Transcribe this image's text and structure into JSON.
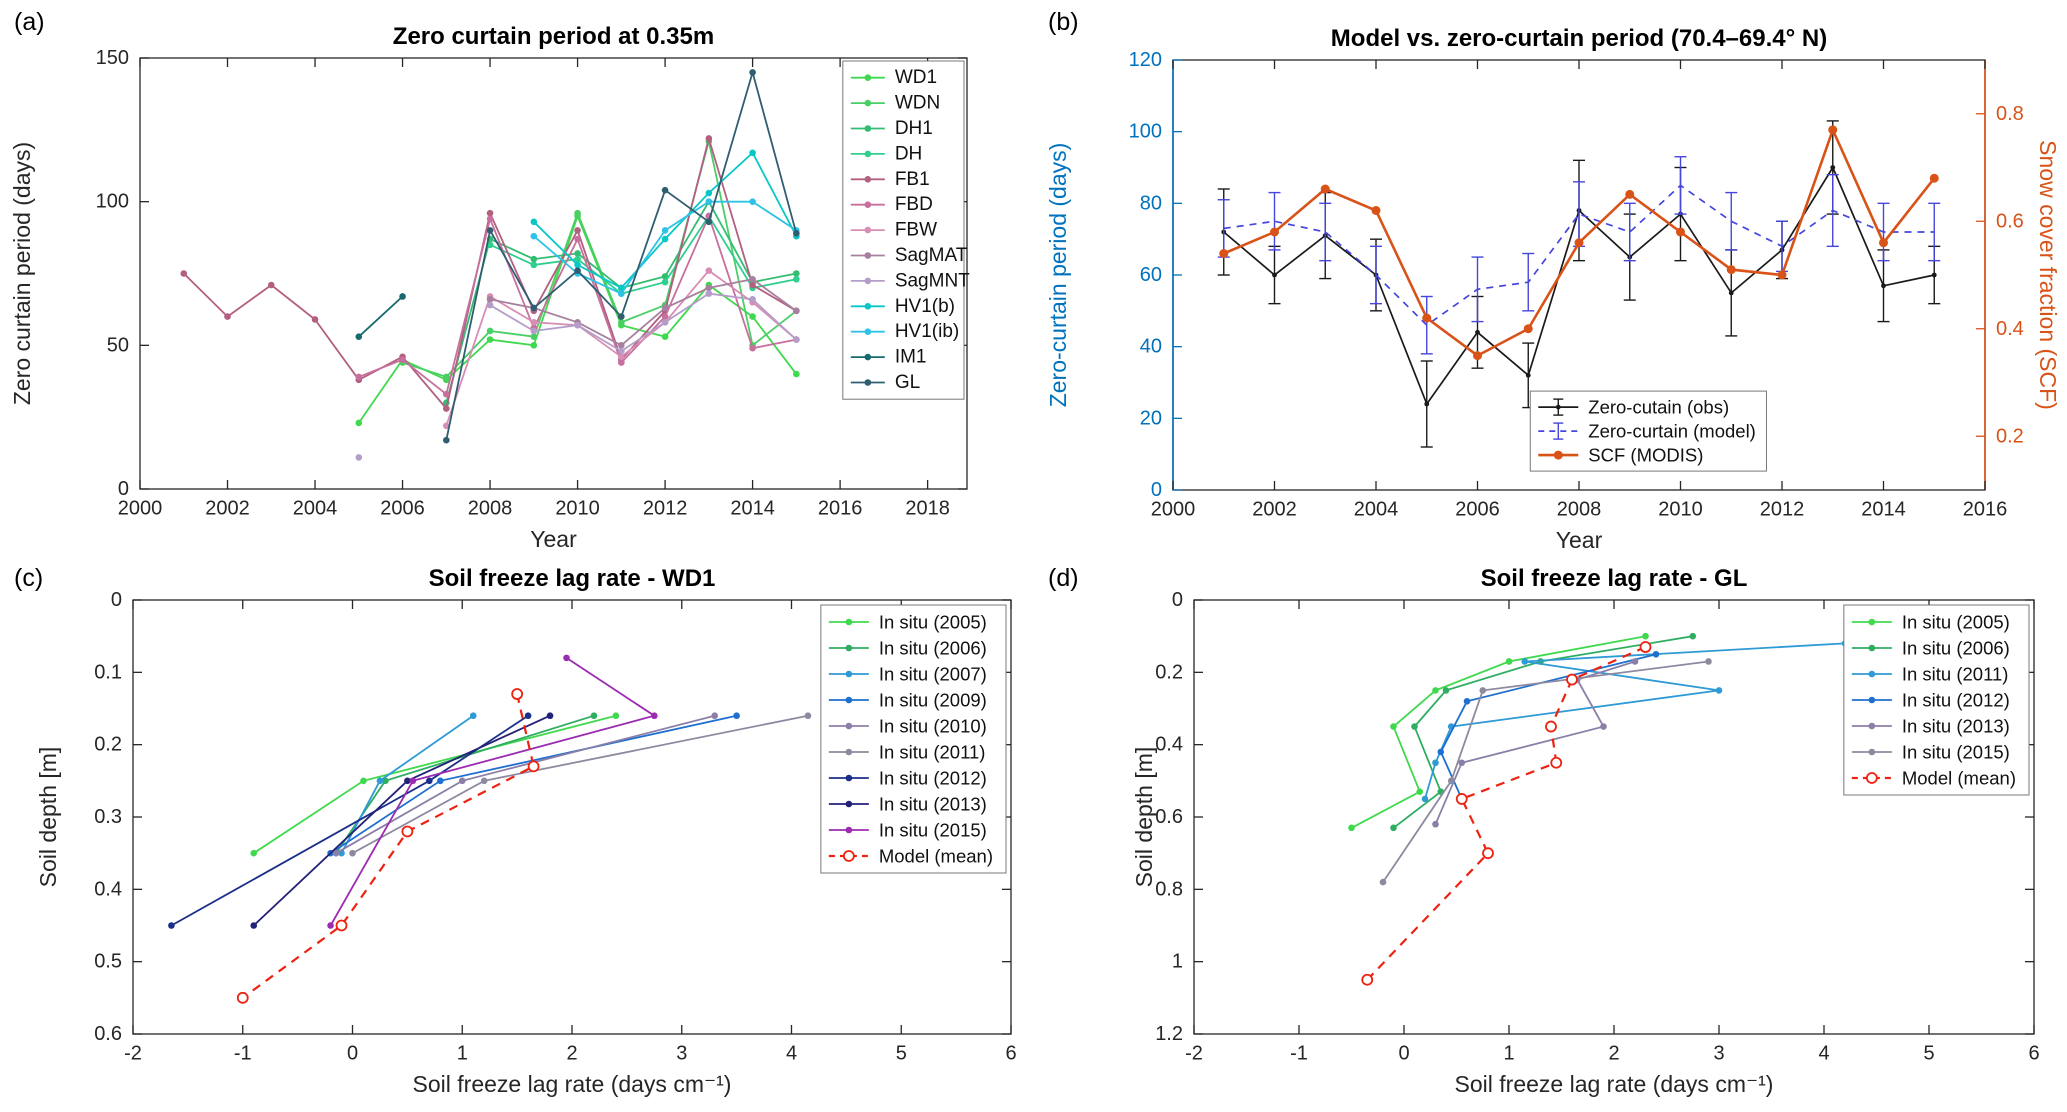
{
  "figure": {
    "background": "#ffffff"
  },
  "panels": {
    "a": {
      "tag": "(a)"
    },
    "b": {
      "tag": "(b)"
    },
    "c": {
      "tag": "(c)"
    },
    "d": {
      "tag": "(d)"
    }
  },
  "chart_data": [
    {
      "id": "a",
      "type": "line",
      "title": "Zero curtain period at 0.35m",
      "xlabel": "Year",
      "ylabel": "Zero curtain period (days)",
      "xlim": [
        2000,
        2018.9
      ],
      "ylim": [
        0,
        150
      ],
      "xticks": [
        2000,
        2002,
        2004,
        2006,
        2008,
        2010,
        2012,
        2014,
        2016,
        2018
      ],
      "yticks": [
        0,
        50,
        100,
        150
      ],
      "grid": false,
      "legend_position": "top-right-inside",
      "series": [
        {
          "name": "WD1",
          "color": "#3fd94d",
          "marker": "o",
          "x": [
            2005,
            2006,
            2007,
            2008,
            2009,
            2010,
            2011,
            2012,
            2013,
            2014,
            2015
          ],
          "y": [
            23,
            45,
            38,
            52,
            50,
            95,
            57,
            53,
            71,
            60,
            40
          ]
        },
        {
          "name": "WDN",
          "color": "#49cf63",
          "marker": "o",
          "x": [
            2006,
            2007,
            2008,
            2009,
            2010,
            2011,
            2012,
            2013,
            2014,
            2015
          ],
          "y": [
            44,
            39,
            55,
            53,
            96,
            58,
            64,
            121,
            50,
            62
          ]
        },
        {
          "name": "DH1",
          "color": "#34bd72",
          "marker": "o",
          "x": [
            2007,
            2008,
            2009,
            2010,
            2011,
            2012,
            2013,
            2014,
            2015
          ],
          "y": [
            30,
            87,
            80,
            82,
            70,
            74,
            100,
            72,
            75
          ]
        },
        {
          "name": "DH",
          "color": "#2fcf8e",
          "marker": "o",
          "x": [
            2008,
            2009,
            2010,
            2011,
            2012,
            2013,
            2014,
            2015
          ],
          "y": [
            85,
            78,
            80,
            68,
            72,
            95,
            70,
            73
          ]
        },
        {
          "name": "FB1",
          "color": "#b25f80",
          "marker": "o",
          "x": [
            2001,
            2002,
            2003,
            2004,
            2005,
            2006,
            2007,
            2008,
            2009,
            2010,
            2011,
            2012,
            2013,
            2014,
            2015
          ],
          "y": [
            75,
            60,
            71,
            59,
            38,
            46,
            28,
            96,
            62,
            90,
            45,
            62,
            122,
            71,
            62
          ]
        },
        {
          "name": "FBD",
          "color": "#c76f9d",
          "marker": "o",
          "x": [
            2005,
            2006,
            2007,
            2008,
            2009,
            2010,
            2011,
            2012,
            2013,
            2014,
            2015
          ],
          "y": [
            39,
            45,
            33,
            94,
            56,
            87,
            44,
            60,
            95,
            49,
            52
          ]
        },
        {
          "name": "FBW",
          "color": "#d78db4",
          "marker": "o",
          "x": [
            2007,
            2008,
            2009,
            2010,
            2011,
            2012,
            2013,
            2014,
            2015
          ],
          "y": [
            22,
            67,
            58,
            57,
            46,
            58,
            76,
            65,
            52
          ]
        },
        {
          "name": "SagMAT",
          "color": "#a8809f",
          "marker": "o",
          "x": [
            2008,
            2009,
            2010,
            2011,
            2012,
            2013,
            2014,
            2015
          ],
          "y": [
            66,
            63,
            58,
            50,
            63,
            70,
            73,
            62
          ]
        },
        {
          "name": "SagMNT",
          "color": "#b49dc9",
          "marker": "o",
          "x": [
            2005,
            null,
            2008,
            2009,
            2010,
            2011,
            2012,
            2013,
            2014,
            2015
          ],
          "y": [
            11,
            null,
            64,
            55,
            57,
            48,
            58,
            68,
            66,
            52
          ]
        },
        {
          "name": "HV1(b)",
          "color": "#0ac7c7",
          "marker": "o",
          "x": [
            2009,
            2010,
            2011,
            2012,
            2013,
            2014,
            2015
          ],
          "y": [
            93,
            78,
            70,
            87,
            103,
            117,
            88
          ]
        },
        {
          "name": "HV1(ib)",
          "color": "#2ec3e6",
          "marker": "o",
          "x": [
            2009,
            2010,
            2011,
            2012,
            2013,
            2014,
            2015
          ],
          "y": [
            88,
            75,
            68,
            90,
            100,
            100,
            90
          ]
        },
        {
          "name": "IM1",
          "color": "#176a6e",
          "marker": "o",
          "x": [
            2005,
            2006
          ],
          "y": [
            53,
            67
          ]
        },
        {
          "name": "GL",
          "color": "#2f5e70",
          "marker": "o",
          "x": [
            2007,
            2008,
            2009,
            2010,
            2011,
            2012,
            2013,
            2014,
            2015
          ],
          "y": [
            17,
            90,
            63,
            76,
            60,
            104,
            93,
            145,
            89
          ]
        }
      ]
    },
    {
      "id": "b",
      "type": "line",
      "title": "Model vs. zero-curtain period (70.4–69.4° N)",
      "xlabel": "Year",
      "ylabel": "Zero-curtain period (days)",
      "ylabel2": "Snow cover fraction (SCF)",
      "xlim": [
        2000,
        2016
      ],
      "ylim": [
        0,
        120
      ],
      "ylim2": [
        0.1,
        0.9
      ],
      "xticks": [
        2000,
        2002,
        2004,
        2006,
        2008,
        2010,
        2012,
        2014,
        2016
      ],
      "yticks": [
        0,
        20,
        40,
        60,
        80,
        100,
        120
      ],
      "yticks2": [
        0.2,
        0.4,
        0.6,
        0.8
      ],
      "axis_colors": {
        "left": "#0072BD",
        "right": "#D95319"
      },
      "grid": false,
      "legend_position": "lower-right-inside",
      "series": [
        {
          "name": "Zero-cutain (obs)",
          "color": "#1a1a1a",
          "marker": "o",
          "msize": 2.4,
          "width": 1.7,
          "x": [
            2001,
            2002,
            2003,
            2004,
            2005,
            2006,
            2007,
            2008,
            2009,
            2010,
            2011,
            2012,
            2013,
            2014,
            2015
          ],
          "y": [
            72,
            60,
            71,
            60,
            24,
            44,
            32,
            78,
            65,
            77,
            55,
            67,
            90,
            57,
            60
          ],
          "yerr": [
            12,
            8,
            12,
            10,
            12,
            10,
            9,
            14,
            12,
            13,
            12,
            8,
            13,
            10,
            8
          ]
        },
        {
          "name": "Zero-curtain (model)",
          "color": "#4646dd",
          "marker": "none",
          "width": 1.7,
          "dash": "7,6",
          "x": [
            2001,
            2002,
            2003,
            2004,
            2005,
            2006,
            2007,
            2008,
            2009,
            2010,
            2011,
            2012,
            2013,
            2014,
            2015
          ],
          "y": [
            73,
            75,
            72,
            60,
            46,
            56,
            58,
            77,
            72,
            85,
            75,
            68,
            78,
            72,
            72
          ],
          "yerr": [
            8,
            8,
            8,
            8,
            8,
            9,
            8,
            9,
            8,
            8,
            8,
            7,
            10,
            8,
            8
          ]
        },
        {
          "name": "SCF (MODIS)",
          "color": "#D95319",
          "marker": "o",
          "msize": 4.5,
          "width": 2.6,
          "axis": "right",
          "x": [
            2001,
            2002,
            2003,
            2004,
            2005,
            2006,
            2007,
            2008,
            2009,
            2010,
            2011,
            2012,
            2013,
            2014,
            2015
          ],
          "y": [
            0.54,
            0.58,
            0.66,
            0.62,
            0.42,
            0.35,
            0.4,
            0.56,
            0.65,
            0.58,
            0.51,
            0.5,
            0.77,
            0.56,
            0.68
          ]
        }
      ]
    },
    {
      "id": "c",
      "type": "line",
      "title": "Soil freeze lag rate - WD1",
      "xlabel": "Soil freeze lag rate (days cm⁻¹)",
      "ylabel": "Soil depth [m]",
      "xlim": [
        -2,
        6
      ],
      "ylim": [
        0,
        0.6
      ],
      "invert_y": true,
      "xticks": [
        -2,
        -1,
        0,
        1,
        2,
        3,
        4,
        5,
        6
      ],
      "yticks": [
        0,
        0.1,
        0.2,
        0.3,
        0.4,
        0.5,
        0.6
      ],
      "grid": false,
      "legend_position": "top-right-inside",
      "series": [
        {
          "name": "In situ (2005)",
          "color": "#3fd94d",
          "marker": "o",
          "x": [
            2.4,
            0.1,
            -0.9
          ],
          "y": [
            0.16,
            0.25,
            0.35
          ]
        },
        {
          "name": "In situ (2006)",
          "color": "#2fae62",
          "marker": "o",
          "x": [
            2.2,
            0.3,
            -0.15
          ],
          "y": [
            0.16,
            0.25,
            0.35
          ]
        },
        {
          "name": "In situ (2007)",
          "color": "#2e9ad6",
          "marker": "o",
          "x": [
            1.1,
            0.25,
            -0.1
          ],
          "y": [
            0.16,
            0.25,
            0.35
          ]
        },
        {
          "name": "In situ (2009)",
          "color": "#1f6fd0",
          "marker": "o",
          "x": [
            3.5,
            0.8,
            -0.2
          ],
          "y": [
            0.16,
            0.25,
            0.35
          ]
        },
        {
          "name": "In situ (2010)",
          "color": "#8b7fa8",
          "marker": "o",
          "x": [
            3.3,
            1.0,
            -0.15
          ],
          "y": [
            0.16,
            0.25,
            0.35
          ]
        },
        {
          "name": "In situ (2011)",
          "color": "#8d8aa0",
          "marker": "o",
          "x": [
            4.15,
            1.2,
            0.0
          ],
          "y": [
            0.16,
            0.25,
            0.35
          ]
        },
        {
          "name": "In situ (2012)",
          "color": "#1b2f8a",
          "marker": "o",
          "x": [
            1.6,
            0.7,
            -1.65
          ],
          "y": [
            0.16,
            0.25,
            0.45
          ]
        },
        {
          "name": "In situ (2013)",
          "color": "#232178",
          "marker": "o",
          "x": [
            1.8,
            0.5,
            -0.9
          ],
          "y": [
            0.16,
            0.25,
            0.45
          ]
        },
        {
          "name": "In situ (2015)",
          "color": "#9b2bb0",
          "marker": "o",
          "x": [
            1.95,
            2.75,
            0.55,
            -0.2
          ],
          "y": [
            0.08,
            0.16,
            0.25,
            0.45
          ]
        },
        {
          "name": "Model (mean)",
          "color": "#ee2211",
          "marker": "o-open",
          "width": 2.2,
          "dash": "9,7",
          "x": [
            1.5,
            1.65,
            0.5,
            -0.1,
            -1.0
          ],
          "y": [
            0.13,
            0.23,
            0.32,
            0.45,
            0.55
          ]
        }
      ]
    },
    {
      "id": "d",
      "type": "line",
      "title": "Soil freeze lag rate - GL",
      "xlabel": "Soil freeze lag rate (days cm⁻¹)",
      "ylabel": "Soil depth [m]",
      "xlim": [
        -2,
        6
      ],
      "ylim": [
        0,
        1.2
      ],
      "invert_y": true,
      "xticks": [
        -2,
        -1,
        0,
        1,
        2,
        3,
        4,
        5,
        6
      ],
      "yticks": [
        0,
        0.2,
        0.4,
        0.6,
        0.8,
        1,
        1.2
      ],
      "grid": false,
      "legend_position": "top-right-inside",
      "series": [
        {
          "name": "In situ (2005)",
          "color": "#3fd94d",
          "marker": "o",
          "x": [
            2.3,
            1.0,
            0.3,
            -0.1,
            0.15,
            -0.5
          ],
          "y": [
            0.1,
            0.17,
            0.25,
            0.35,
            0.53,
            0.63
          ]
        },
        {
          "name": "In situ (2006)",
          "color": "#2fae62",
          "marker": "o",
          "x": [
            2.75,
            1.3,
            0.4,
            0.1,
            0.35,
            -0.1
          ],
          "y": [
            0.1,
            0.17,
            0.25,
            0.35,
            0.53,
            0.63
          ]
        },
        {
          "name": "In situ (2011)",
          "color": "#2e9ad6",
          "marker": "o",
          "x": [
            4.2,
            1.15,
            3.0,
            0.45,
            0.3,
            0.2
          ],
          "y": [
            0.12,
            0.17,
            0.25,
            0.35,
            0.45,
            0.55
          ]
        },
        {
          "name": "In situ (2012)",
          "color": "#1f6fd0",
          "marker": "o",
          "x": [
            2.4,
            0.6,
            0.35,
            0.55
          ],
          "y": [
            0.15,
            0.28,
            0.42,
            0.55
          ]
        },
        {
          "name": "In situ (2013)",
          "color": "#8b7fa8",
          "marker": "o",
          "x": [
            2.2,
            1.65,
            1.9,
            0.55,
            0.3
          ],
          "y": [
            0.17,
            0.22,
            0.35,
            0.45,
            0.62
          ]
        },
        {
          "name": "In situ (2015)",
          "color": "#8d8aa0",
          "marker": "o",
          "x": [
            2.9,
            0.75,
            0.45,
            -0.2
          ],
          "y": [
            0.17,
            0.25,
            0.5,
            0.78
          ]
        },
        {
          "name": "Model (mean)",
          "color": "#ee2211",
          "marker": "o-open",
          "width": 2.2,
          "dash": "9,7",
          "x": [
            2.3,
            1.6,
            1.4,
            1.45,
            0.55,
            0.8,
            -0.35
          ],
          "y": [
            0.13,
            0.22,
            0.35,
            0.45,
            0.55,
            0.7,
            1.05
          ]
        }
      ]
    }
  ]
}
